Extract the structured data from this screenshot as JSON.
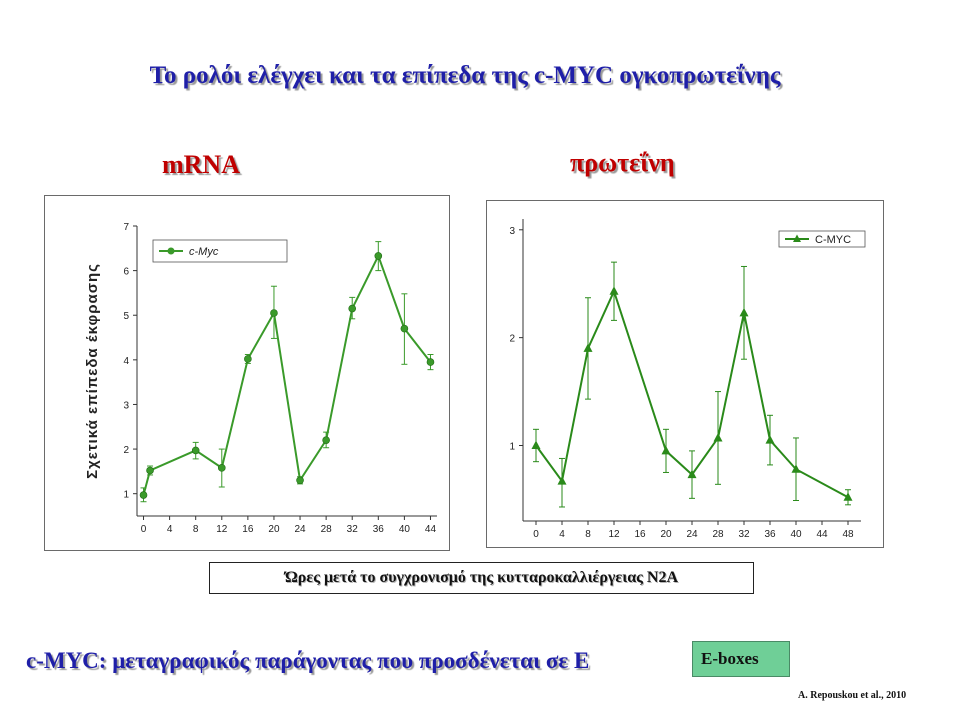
{
  "slide": {
    "title": "Το ρολόι ελέγχει και τα επίπεδα της c-MYC ογκοπρωτεΐνης",
    "mrna_label": "mRNA",
    "protein_label": "πρωτεΐνη",
    "x_caption": "Ώρες μετά το συγχρονισμό της κυτταροκαλλιέργειας N2A",
    "bottom_text": "c-MYC: μεταγραφικός παράγοντας που προσδένεται σε E",
    "eboxes_label": "E-boxes",
    "citation": "A. Repouskou et al., 2010"
  },
  "chart_data": [
    {
      "type": "line",
      "title": "",
      "ylabel": "Σχετικά επίπεδα έκφρασης",
      "xlabel": "",
      "xlim": [
        -1,
        45
      ],
      "ylim": [
        0.5,
        7
      ],
      "xticks": [
        0,
        4,
        8,
        12,
        16,
        20,
        24,
        28,
        32,
        36,
        40,
        44
      ],
      "yticks": [
        1,
        2,
        3,
        4,
        5,
        6,
        7
      ],
      "grid": false,
      "legend": "top-left",
      "color": "#3a9a2a",
      "marker": "circle",
      "series": [
        {
          "name": "c-Myc",
          "x": [
            0,
            1,
            8,
            12,
            16,
            20,
            24,
            28,
            32,
            36,
            40,
            44
          ],
          "values": [
            0.97,
            1.52,
            1.97,
            1.58,
            4.02,
            5.05,
            1.3,
            2.2,
            5.15,
            6.33,
            4.7,
            3.95
          ],
          "err_upper": [
            1.13,
            1.62,
            2.15,
            2.0,
            4.12,
            5.65,
            1.38,
            2.38,
            5.4,
            6.65,
            5.48,
            4.12
          ],
          "err_lower": [
            0.82,
            1.42,
            1.78,
            1.15,
            3.92,
            4.48,
            1.22,
            2.03,
            4.92,
            6.0,
            3.9,
            3.78
          ]
        }
      ]
    },
    {
      "type": "line",
      "title": "",
      "ylabel": "",
      "xlabel": "",
      "xlim": [
        -2,
        50
      ],
      "ylim": [
        0.3,
        3.1
      ],
      "xticks": [
        0,
        4,
        8,
        12,
        16,
        20,
        24,
        28,
        32,
        36,
        40,
        44,
        48
      ],
      "yticks": [
        1,
        2,
        3
      ],
      "grid": false,
      "legend": "top-right",
      "color": "#2a8a1a",
      "marker": "triangle",
      "series": [
        {
          "name": "C-MYC",
          "x": [
            0,
            4,
            8,
            12,
            20,
            24,
            28,
            32,
            36,
            40,
            48
          ],
          "values": [
            1.0,
            0.67,
            1.9,
            2.43,
            0.95,
            0.73,
            1.07,
            2.23,
            1.05,
            0.78,
            0.52
          ],
          "err_upper": [
            1.15,
            0.88,
            2.37,
            2.7,
            1.15,
            0.95,
            1.5,
            2.66,
            1.28,
            1.07,
            0.59
          ],
          "err_lower": [
            0.85,
            0.43,
            1.43,
            2.16,
            0.75,
            0.51,
            0.64,
            1.8,
            0.82,
            0.49,
            0.45
          ]
        }
      ]
    }
  ]
}
